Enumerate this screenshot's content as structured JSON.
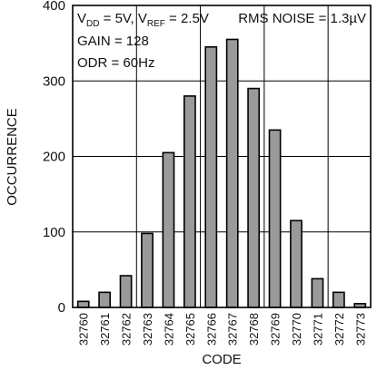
{
  "chart_data": {
    "type": "bar",
    "xlabel": "CODE",
    "ylabel": "OCCURRENCE",
    "ylim": [
      0,
      400
    ],
    "yticks": [
      0,
      100,
      200,
      300,
      400
    ],
    "grid": true,
    "categories": [
      "32760",
      "32761",
      "32762",
      "32763",
      "32764",
      "32765",
      "32766",
      "32767",
      "32768",
      "32769",
      "32770",
      "32771",
      "32772",
      "32773"
    ],
    "values": [
      8,
      20,
      42,
      98,
      205,
      280,
      345,
      355,
      290,
      235,
      115,
      38,
      20,
      5
    ],
    "bar_fill": "#9a9a9a",
    "bar_stroke": "#000000",
    "annotations": {
      "vdd_vref": {
        "p1": "V",
        "sub1": "DD",
        "p2": " = 5V, V",
        "sub2": "REF",
        "p3": " = 2.5V"
      },
      "gain": "GAIN = 128",
      "odr": "ODR = 60Hz",
      "noise": "RMS NOISE = 1.3µV"
    }
  }
}
